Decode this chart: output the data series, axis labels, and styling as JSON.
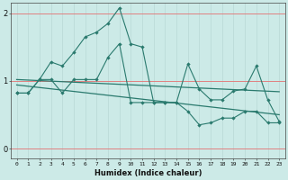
{
  "xlabel": "Humidex (Indice chaleur)",
  "bg_color": "#cceae7",
  "line_color": "#2a7a6e",
  "grid_h_color": "#e08080",
  "grid_v_color": "#b8d8d5",
  "xlim": [
    -0.5,
    23.5
  ],
  "ylim": [
    -0.15,
    2.15
  ],
  "yticks": [
    0,
    1,
    2
  ],
  "xticks": [
    0,
    1,
    2,
    3,
    4,
    5,
    6,
    7,
    8,
    9,
    10,
    11,
    12,
    13,
    14,
    15,
    16,
    17,
    18,
    19,
    20,
    21,
    22,
    23
  ],
  "series1_x": [
    0,
    1,
    2,
    3,
    4,
    5,
    6,
    7,
    8,
    9,
    10,
    11,
    12,
    13,
    14,
    15,
    16,
    17,
    18,
    19,
    20,
    21,
    22,
    23
  ],
  "series1_y": [
    0.82,
    0.82,
    1.02,
    1.28,
    1.22,
    1.42,
    1.65,
    1.72,
    1.85,
    2.08,
    1.55,
    1.5,
    0.68,
    0.68,
    0.68,
    1.25,
    0.88,
    0.72,
    0.72,
    0.85,
    0.88,
    1.22,
    0.72,
    0.4
  ],
  "series2_x": [
    0,
    1,
    2,
    3,
    4,
    5,
    6,
    7,
    8,
    9,
    10,
    11,
    12,
    13,
    14,
    15,
    16,
    17,
    18,
    19,
    20,
    21,
    22,
    23
  ],
  "series2_y": [
    0.82,
    0.82,
    1.02,
    1.02,
    0.82,
    1.02,
    1.02,
    1.02,
    1.35,
    1.55,
    0.68,
    0.68,
    0.68,
    0.68,
    0.68,
    0.55,
    0.35,
    0.38,
    0.45,
    0.45,
    0.55,
    0.55,
    0.38,
    0.38
  ],
  "trend1_x": [
    0,
    23
  ],
  "trend1_y": [
    1.02,
    0.84
  ],
  "trend2_x": [
    0,
    23
  ],
  "trend2_y": [
    0.94,
    0.5
  ]
}
